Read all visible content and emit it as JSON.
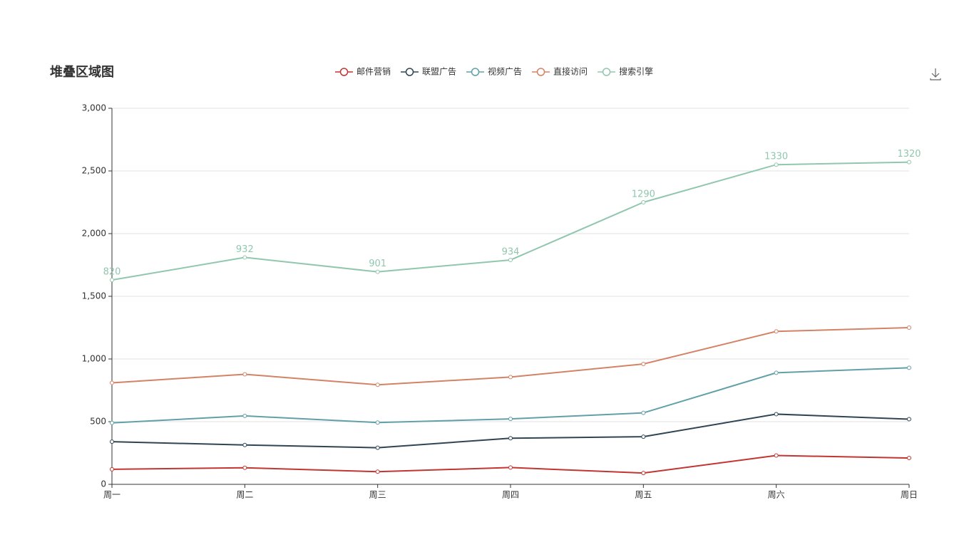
{
  "chart_data": {
    "type": "line",
    "stacked": true,
    "title": "堆叠区域图",
    "categories": [
      "周一",
      "周二",
      "周三",
      "周四",
      "周五",
      "周六",
      "周日"
    ],
    "series": [
      {
        "name": "邮件营销",
        "color": "#c23531",
        "values": [
          120,
          132,
          101,
          134,
          90,
          230,
          210
        ]
      },
      {
        "name": "联盟广告",
        "color": "#2f4554",
        "values": [
          220,
          182,
          191,
          234,
          290,
          330,
          310
        ]
      },
      {
        "name": "视频广告",
        "color": "#61a0a8",
        "values": [
          150,
          232,
          201,
          154,
          190,
          330,
          410
        ]
      },
      {
        "name": "直接访问",
        "color": "#d48265",
        "values": [
          320,
          332,
          301,
          334,
          390,
          330,
          320
        ]
      },
      {
        "name": "搜索引擎",
        "color": "#91c7ae",
        "values": [
          820,
          932,
          901,
          934,
          1290,
          1330,
          1320
        ],
        "show_labels": true
      }
    ],
    "ylim": [
      0,
      3000
    ],
    "yticks": [
      0,
      500,
      {
        "value": 1000,
        "label": "1,000"
      },
      {
        "value": 1500,
        "label": "1,500"
      },
      {
        "value": 2000,
        "label": "2,000"
      },
      {
        "value": 2500,
        "label": "2,500"
      },
      {
        "value": 3000,
        "label": "3,000"
      }
    ],
    "grid": true,
    "legend": "top"
  }
}
